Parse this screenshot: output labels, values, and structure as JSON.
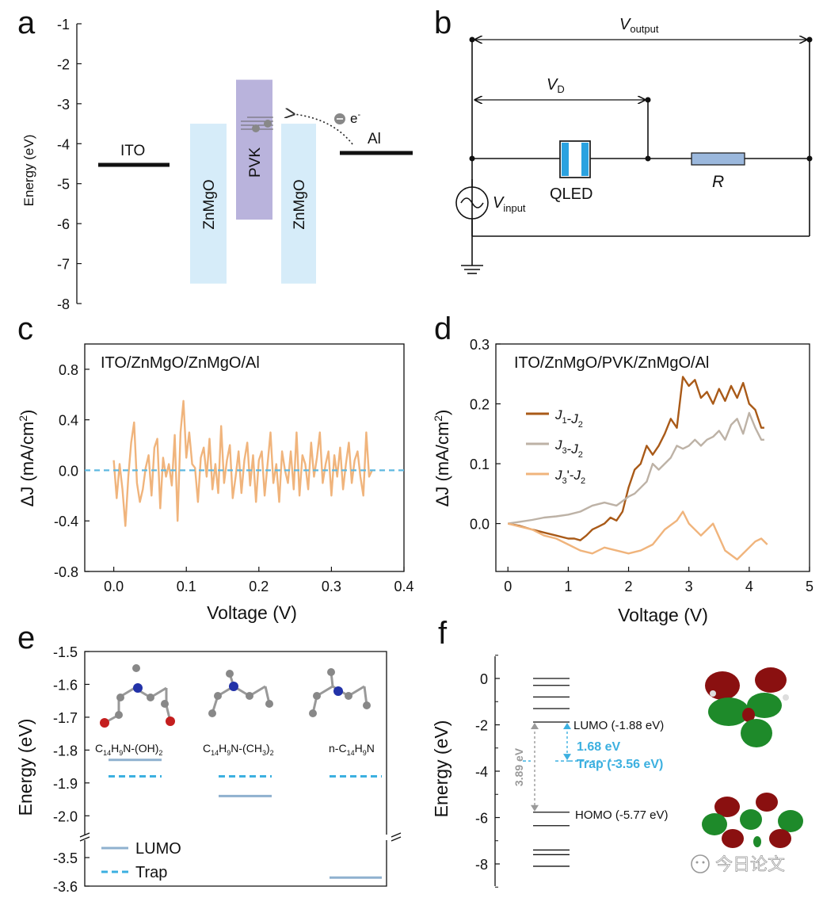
{
  "panel_labels": [
    "a",
    "b",
    "c",
    "d",
    "e",
    "f"
  ],
  "watermark": {
    "text": "今日论文"
  },
  "chart_data": [
    {
      "panel": "a",
      "type": "diagram",
      "ylabel": "Energy (eV)",
      "ylim": [
        -8,
        -1
      ],
      "yticks": [
        "-1",
        "-2",
        "-3",
        "-4",
        "-5",
        "-6",
        "-7",
        "-8"
      ],
      "levels": [
        {
          "label": "ITO",
          "energy": -4.5
        },
        {
          "label": "Al",
          "energy": -4.2
        }
      ],
      "layers": [
        {
          "label": "ZnMgO",
          "top": -3.5,
          "bottom": -7.5,
          "color": "#d6ecf9"
        },
        {
          "label": "PVK",
          "top": -2.4,
          "bottom": -5.9,
          "color": "#b9b3dc"
        },
        {
          "label": "ZnMgO",
          "top": -3.5,
          "bottom": -7.5,
          "color": "#d6ecf9"
        }
      ],
      "electron_label": "e",
      "electron_sup": "-"
    },
    {
      "panel": "b",
      "type": "diagram",
      "labels": {
        "v_output": "V",
        "v_output_sub": "output",
        "v_d": "V",
        "v_d_sub": "D",
        "qled": "QLED",
        "r": "R",
        "v_input": "V",
        "v_input_sub": "input"
      }
    },
    {
      "panel": "c",
      "type": "line",
      "title": "ITO/ZnMgO/ZnMgO/Al",
      "xlabel": "Voltage (V)",
      "ylabel_main": "ΔJ (mA/cm",
      "ylabel_sup": "2",
      "ylabel_end": ")",
      "xlim": [
        -0.04,
        0.4
      ],
      "ylim": [
        -0.8,
        1.0
      ],
      "xticks": [
        "0.0",
        "0.1",
        "0.2",
        "0.3",
        "0.4"
      ],
      "yticks": [
        "-0.8",
        "-0.4",
        "0.0",
        "0.4",
        "0.8"
      ],
      "series": [
        {
          "name": "ΔJ",
          "color": "#f0b47c",
          "x": [
            0.0,
            0.004,
            0.008,
            0.012,
            0.016,
            0.02,
            0.024,
            0.028,
            0.032,
            0.036,
            0.04,
            0.044,
            0.048,
            0.052,
            0.056,
            0.06,
            0.064,
            0.068,
            0.072,
            0.076,
            0.08,
            0.084,
            0.088,
            0.092,
            0.096,
            0.1,
            0.104,
            0.108,
            0.112,
            0.116,
            0.12,
            0.124,
            0.128,
            0.132,
            0.136,
            0.14,
            0.144,
            0.148,
            0.152,
            0.156,
            0.16,
            0.164,
            0.168,
            0.172,
            0.176,
            0.18,
            0.184,
            0.188,
            0.192,
            0.196,
            0.2,
            0.204,
            0.208,
            0.212,
            0.216,
            0.22,
            0.224,
            0.228,
            0.232,
            0.236,
            0.24,
            0.244,
            0.248,
            0.252,
            0.256,
            0.26,
            0.264,
            0.268,
            0.272,
            0.276,
            0.28,
            0.284,
            0.288,
            0.292,
            0.296,
            0.3,
            0.304,
            0.308,
            0.312,
            0.316,
            0.32,
            0.324,
            0.328,
            0.332,
            0.336,
            0.34,
            0.344,
            0.348,
            0.352,
            0.356
          ],
          "y": [
            0.08,
            -0.22,
            0.05,
            -0.15,
            -0.44,
            -0.05,
            0.22,
            0.38,
            -0.1,
            -0.25,
            -0.15,
            0.02,
            0.12,
            -0.2,
            0.18,
            0.25,
            -0.3,
            0.1,
            -0.05,
            0.05,
            -0.12,
            0.28,
            -0.4,
            0.3,
            0.55,
            0.1,
            0.3,
            0.05,
            0.02,
            -0.25,
            0.1,
            0.18,
            -0.05,
            0.25,
            -0.15,
            0.05,
            -0.18,
            0.35,
            -0.1,
            0.08,
            0.2,
            -0.22,
            -0.05,
            0.15,
            -0.18,
            0.08,
            0.22,
            -0.12,
            0.12,
            -0.25,
            0.08,
            0.15,
            -0.2,
            0.05,
            0.3,
            -0.1,
            0.05,
            -0.25,
            0.15,
            0.0,
            -0.1,
            0.15,
            -0.15,
            0.3,
            -0.2,
            0.12,
            0.05,
            -0.15,
            0.22,
            -0.05,
            0.1,
            0.3,
            -0.1,
            0.05,
            0.15,
            -0.2,
            0.12,
            -0.05,
            0.18,
            -0.15,
            0.05,
            0.22,
            -0.1,
            0.08,
            0.15,
            -0.05,
            -0.2,
            0.3,
            -0.05,
            0.0
          ]
        },
        {
          "name": "zero",
          "color": "#5eb8e0",
          "dashed": true,
          "x": [
            -0.04,
            0.4
          ],
          "y": [
            0.0,
            0.0
          ]
        }
      ]
    },
    {
      "panel": "d",
      "type": "line",
      "title": "ITO/ZnMgO/PVK/ZnMgO/Al",
      "xlabel": "Voltage (V)",
      "ylabel_main": "ΔJ (mA/cm",
      "ylabel_sup": "2",
      "ylabel_end": ")",
      "xlim": [
        -0.2,
        5
      ],
      "ylim": [
        -0.08,
        0.3
      ],
      "xticks": [
        "0",
        "1",
        "2",
        "3",
        "4",
        "5"
      ],
      "yticks": [
        "0.0",
        "0.1",
        "0.2",
        "0.3"
      ],
      "legend": [
        {
          "j": "J",
          "a": "1",
          "prime": "",
          "b": "2"
        },
        {
          "j": "J",
          "a": "3",
          "prime": "",
          "b": "2"
        },
        {
          "j": "J",
          "a": "3",
          "prime": "'",
          "b": "2"
        }
      ],
      "series": [
        {
          "name": "J1-J2",
          "color": "#a95a18",
          "x": [
            0,
            0.2,
            0.4,
            0.6,
            0.8,
            1.0,
            1.1,
            1.2,
            1.3,
            1.4,
            1.5,
            1.6,
            1.7,
            1.8,
            1.9,
            2.0,
            2.1,
            2.2,
            2.3,
            2.4,
            2.5,
            2.6,
            2.7,
            2.8,
            2.9,
            3.0,
            3.1,
            3.2,
            3.3,
            3.4,
            3.5,
            3.6,
            3.7,
            3.8,
            3.9,
            4.0,
            4.1,
            4.2,
            4.25
          ],
          "y": [
            0,
            -0.004,
            -0.01,
            -0.015,
            -0.02,
            -0.025,
            -0.025,
            -0.028,
            -0.02,
            -0.01,
            -0.005,
            0.0,
            0.01,
            0.005,
            0.02,
            0.06,
            0.09,
            0.1,
            0.13,
            0.115,
            0.13,
            0.15,
            0.175,
            0.16,
            0.245,
            0.23,
            0.24,
            0.21,
            0.22,
            0.2,
            0.225,
            0.205,
            0.23,
            0.21,
            0.235,
            0.2,
            0.19,
            0.16,
            0.16
          ]
        },
        {
          "name": "J3-J2",
          "color": "#bdb2a6",
          "x": [
            0,
            0.2,
            0.4,
            0.6,
            0.8,
            1.0,
            1.2,
            1.4,
            1.6,
            1.8,
            2.0,
            2.1,
            2.2,
            2.3,
            2.4,
            2.5,
            2.6,
            2.7,
            2.8,
            2.9,
            3.0,
            3.1,
            3.2,
            3.3,
            3.4,
            3.5,
            3.6,
            3.7,
            3.8,
            3.9,
            4.0,
            4.1,
            4.2,
            4.25
          ],
          "y": [
            0,
            0.003,
            0.006,
            0.01,
            0.012,
            0.015,
            0.02,
            0.03,
            0.035,
            0.03,
            0.045,
            0.05,
            0.06,
            0.07,
            0.1,
            0.09,
            0.1,
            0.11,
            0.13,
            0.125,
            0.13,
            0.14,
            0.13,
            0.14,
            0.145,
            0.155,
            0.14,
            0.165,
            0.175,
            0.15,
            0.185,
            0.16,
            0.14,
            0.14
          ]
        },
        {
          "name": "J3'-J2",
          "color": "#f0b47c",
          "x": [
            0,
            0.2,
            0.4,
            0.6,
            0.8,
            1.0,
            1.2,
            1.4,
            1.6,
            1.8,
            2.0,
            2.2,
            2.4,
            2.6,
            2.8,
            2.9,
            3.0,
            3.2,
            3.4,
            3.6,
            3.8,
            4.0,
            4.1,
            4.2,
            4.3
          ],
          "y": [
            0,
            -0.005,
            -0.01,
            -0.02,
            -0.025,
            -0.035,
            -0.045,
            -0.05,
            -0.04,
            -0.045,
            -0.05,
            -0.045,
            -0.035,
            -0.01,
            0.005,
            0.02,
            0.0,
            -0.02,
            0.0,
            -0.045,
            -0.06,
            -0.04,
            -0.03,
            -0.025,
            -0.035
          ]
        }
      ]
    },
    {
      "panel": "e",
      "type": "level-diagram",
      "ylabel": "Energy (eV)",
      "ylim_upper": [
        -2.05,
        -1.5
      ],
      "ylim_lower": [
        -3.6,
        -3.45
      ],
      "yticks_upper": [
        "-1.5",
        "-1.6",
        "-1.7",
        "-1.8",
        "-1.9",
        "-2.0"
      ],
      "yticks_lower": [
        "-3.5",
        "-3.6"
      ],
      "molecules": [
        {
          "base": "C",
          "n1": "14",
          "h": "H",
          "n2": "9",
          "rest": "N-(OH)",
          "tail": "2",
          "lumo": -1.83,
          "trap": -1.88
        },
        {
          "base": "C",
          "n1": "14",
          "h": "H",
          "n2": "9",
          "rest": "N-(CH",
          "tail": "3",
          "end": ")",
          "tail2": "2",
          "lumo": -1.94,
          "trap": -1.88
        },
        {
          "base": "n-C",
          "n1": "14",
          "h": "H",
          "n2": "9",
          "rest": "N",
          "lumo": -3.57,
          "trap": -1.88
        }
      ],
      "legend": [
        "LUMO",
        "Trap"
      ]
    },
    {
      "panel": "f",
      "type": "level-diagram",
      "ylabel": "Energy (eV)",
      "ylim": [
        -9,
        1
      ],
      "yticks": [
        "0",
        "-2",
        "-4",
        "-6",
        "-8"
      ],
      "levels": [
        0.0,
        -0.3,
        -0.8,
        -1.3,
        -1.88,
        -5.77,
        -6.35,
        -7.4,
        -7.6,
        -8.1
      ],
      "lumo_label": "LUMO (-1.88 eV)",
      "homo_label": "HOMO (-5.77 eV)",
      "trap_label": "Trap (-3.56 eV)",
      "trap_energy": -3.56,
      "gap_label": "3.89 eV",
      "trap_gap_label": "1.68 eV"
    }
  ]
}
